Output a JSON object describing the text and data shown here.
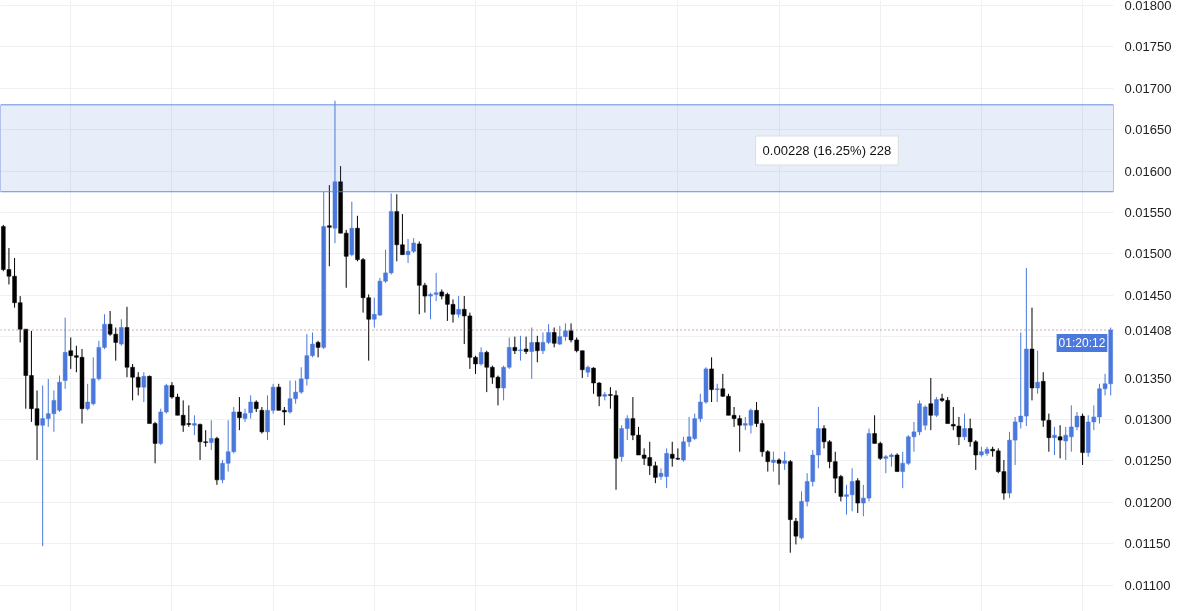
{
  "chart_data": {
    "type": "candlestick",
    "categories": [
      null,
      null,
      null,
      null,
      null,
      null,
      null,
      null,
      null,
      null,
      null,
      null,
      null,
      null,
      null,
      null,
      null,
      null,
      null,
      null,
      null,
      null,
      null,
      null,
      null,
      null,
      null,
      null,
      null,
      null,
      null,
      null,
      null,
      null,
      null,
      null,
      null,
      null,
      null,
      null,
      null,
      null,
      null,
      null,
      null,
      null,
      null,
      null,
      null,
      null,
      null,
      null,
      null,
      null,
      null,
      null,
      null,
      null,
      null,
      null,
      null,
      null,
      null,
      null,
      null,
      null,
      null,
      null,
      null,
      null,
      null,
      null,
      null,
      null,
      null,
      null,
      null,
      null,
      null,
      null,
      null,
      null,
      null,
      null,
      null,
      null,
      null,
      null,
      null,
      null,
      null,
      null,
      null,
      null,
      null,
      null,
      null,
      null,
      null,
      null,
      null,
      null,
      null,
      null,
      null,
      null,
      null,
      null,
      null,
      null,
      null,
      null,
      null,
      null,
      null,
      null,
      null,
      null,
      null,
      null,
      null,
      null,
      null,
      null,
      null,
      null,
      null,
      null,
      null,
      null,
      null,
      null,
      null,
      null,
      null,
      null,
      null,
      null,
      null,
      null,
      null,
      null,
      null,
      null,
      null,
      null,
      null,
      null,
      null,
      null,
      null,
      null,
      null,
      null,
      null,
      null,
      null,
      null,
      null,
      null,
      null,
      null,
      null,
      null,
      null,
      null,
      null,
      null,
      null,
      null,
      null,
      null,
      null,
      null,
      null,
      null,
      null,
      null,
      null,
      null,
      null,
      null,
      null,
      null,
      null,
      null,
      null,
      null,
      null,
      null,
      null,
      null,
      null,
      null,
      null,
      null,
      null,
      null
    ],
    "ohlc": [
      [
        0.01533,
        0.01535,
        0.01479,
        0.01481
      ],
      [
        0.01481,
        0.01507,
        0.01463,
        0.01473
      ],
      [
        0.01473,
        0.01495,
        0.01435,
        0.01441
      ],
      [
        0.01441,
        0.01449,
        0.01393,
        0.01409
      ],
      [
        0.01409,
        0.01409,
        0.01313,
        0.01353
      ],
      [
        0.01353,
        0.01407,
        0.01297,
        0.01313
      ],
      [
        0.01313,
        0.01335,
        0.01251,
        0.01293
      ],
      [
        0.01293,
        0.01341,
        0.01147,
        0.01301
      ],
      [
        0.01301,
        0.01349,
        0.01291,
        0.01307
      ],
      [
        0.01307,
        0.01335,
        0.01285,
        0.01323
      ],
      [
        0.01311,
        0.01353,
        0.01309,
        0.01345
      ],
      [
        0.01347,
        0.01423,
        0.01337,
        0.01381
      ],
      [
        0.01383,
        0.01399,
        0.01361,
        0.01377
      ],
      [
        0.01377,
        0.01389,
        0.01357,
        0.01375
      ],
      [
        0.01375,
        0.01385,
        0.01295,
        0.01313
      ],
      [
        0.01313,
        0.01343,
        0.01311,
        0.01321
      ],
      [
        0.01319,
        0.01375,
        0.01317,
        0.01349
      ],
      [
        0.01349,
        0.01395,
        0.01347,
        0.01387
      ],
      [
        0.01387,
        0.01427,
        0.01385,
        0.01415
      ],
      [
        0.01415,
        0.01431,
        0.01401,
        0.01403
      ],
      [
        0.01403,
        0.01411,
        0.01371,
        0.01393
      ],
      [
        0.01391,
        0.01421,
        0.01389,
        0.01411
      ],
      [
        0.01411,
        0.01436,
        0.01351,
        0.01363
      ],
      [
        0.01363,
        0.01367,
        0.01323,
        0.01351
      ],
      [
        0.01351,
        0.01357,
        0.01329,
        0.01339
      ],
      [
        0.01339,
        0.01357,
        0.01321,
        0.01352
      ],
      [
        0.01352,
        0.01353,
        0.01295,
        0.01295
      ],
      [
        0.01295,
        0.01297,
        0.01247,
        0.01271
      ],
      [
        0.01271,
        0.01313,
        0.01269,
        0.01309
      ],
      [
        0.01309,
        0.01343,
        0.01307,
        0.01341
      ],
      [
        0.01341,
        0.01345,
        0.01325,
        0.01327
      ],
      [
        0.01327,
        0.01331,
        0.01305,
        0.01305
      ],
      [
        0.01305,
        0.01323,
        0.01285,
        0.01293
      ],
      [
        0.01295,
        0.01317,
        0.01291,
        0.01294
      ],
      [
        0.01293,
        0.01305,
        0.01281,
        0.01295
      ],
      [
        0.01294,
        0.01295,
        0.01251,
        0.01273
      ],
      [
        0.01273,
        0.01287,
        0.01267,
        0.01272
      ],
      [
        0.01272,
        0.01299,
        0.01263,
        0.01277
      ],
      [
        0.01277,
        0.01279,
        0.01221,
        0.01227
      ],
      [
        0.01227,
        0.01251,
        0.01223,
        0.01247
      ],
      [
        0.01247,
        0.01299,
        0.01237,
        0.01261
      ],
      [
        0.01261,
        0.01315,
        0.01259,
        0.01309
      ],
      [
        0.01309,
        0.01327,
        0.01287,
        0.01302
      ],
      [
        0.01301,
        0.01313,
        0.01297,
        0.01307
      ],
      [
        0.01308,
        0.01329,
        0.01301,
        0.01321
      ],
      [
        0.01321,
        0.01323,
        0.01309,
        0.01313
      ],
      [
        0.01311,
        0.01315,
        0.01283,
        0.01285
      ],
      [
        0.01285,
        0.01329,
        0.01275,
        0.01311
      ],
      [
        0.01311,
        0.01343,
        0.01307,
        0.01339
      ],
      [
        0.01339,
        0.01343,
        0.01311,
        0.01311
      ],
      [
        0.01311,
        0.01315,
        0.01293,
        0.01309
      ],
      [
        0.01309,
        0.01347,
        0.01307,
        0.01325
      ],
      [
        0.01325,
        0.01347,
        0.01319,
        0.01333
      ],
      [
        0.01333,
        0.01363,
        0.01331,
        0.01349
      ],
      [
        0.01349,
        0.01403,
        0.01341,
        0.01377
      ],
      [
        0.01377,
        0.01405,
        0.01375,
        0.01391
      ],
      [
        0.01393,
        0.01395,
        0.01375,
        0.01387
      ],
      [
        0.01387,
        0.01575,
        0.01385,
        0.01533
      ],
      [
        0.01534,
        0.01583,
        0.01485,
        0.01532
      ],
      [
        0.01531,
        0.01685,
        0.01513,
        0.01587
      ],
      [
        0.01587,
        0.01606,
        0.01525,
        0.01525
      ],
      [
        0.01525,
        0.01529,
        0.01459,
        0.01497
      ],
      [
        0.01499,
        0.01563,
        0.01497,
        0.01531
      ],
      [
        0.01531,
        0.01546,
        0.01491,
        0.01493
      ],
      [
        0.01493,
        0.01495,
        0.01429,
        0.01447
      ],
      [
        0.01447,
        0.01451,
        0.01371,
        0.01421
      ],
      [
        0.01421,
        0.01447,
        0.01411,
        0.01427
      ],
      [
        0.01426,
        0.01471,
        0.01425,
        0.01467
      ],
      [
        0.01467,
        0.01505,
        0.01465,
        0.01477
      ],
      [
        0.01477,
        0.01573,
        0.01475,
        0.01551
      ],
      [
        0.01551,
        0.01572,
        0.01491,
        0.01511
      ],
      [
        0.01511,
        0.01548,
        0.01499,
        0.01499
      ],
      [
        0.01499,
        0.01518,
        0.01489,
        0.01503
      ],
      [
        0.01503,
        0.01519,
        0.01501,
        0.01513
      ],
      [
        0.01512,
        0.01515,
        0.01427,
        0.01462
      ],
      [
        0.01462,
        0.01465,
        0.01429,
        0.01449
      ],
      [
        0.01449,
        0.01453,
        0.01421,
        0.01451
      ],
      [
        0.01451,
        0.01477,
        0.01443,
        0.01453
      ],
      [
        0.01454,
        0.01457,
        0.01445,
        0.01449
      ],
      [
        0.01451,
        0.01453,
        0.01419,
        0.01439
      ],
      [
        0.01439,
        0.01445,
        0.01417,
        0.01427
      ],
      [
        0.01427,
        0.01449,
        0.01423,
        0.01433
      ],
      [
        0.01433,
        0.01449,
        0.01391,
        0.01425
      ],
      [
        0.01425,
        0.01429,
        0.01361,
        0.01375
      ],
      [
        0.01375,
        0.01377,
        0.01355,
        0.01367
      ],
      [
        0.01367,
        0.01387,
        0.01365,
        0.01381
      ],
      [
        0.01381,
        0.01383,
        0.01333,
        0.01363
      ],
      [
        0.01363,
        0.01365,
        0.01343,
        0.01351
      ],
      [
        0.01351,
        0.01353,
        0.01317,
        0.01338
      ],
      [
        0.01338,
        0.01365,
        0.01323,
        0.01363
      ],
      [
        0.01363,
        0.01399,
        0.01361,
        0.01387
      ],
      [
        0.01387,
        0.014,
        0.01379,
        0.01383
      ],
      [
        0.01383,
        0.01401,
        0.01371,
        0.01384
      ],
      [
        0.01385,
        0.014,
        0.01379,
        0.01382
      ],
      [
        0.01382,
        0.01411,
        0.01349,
        0.01393
      ],
      [
        0.01393,
        0.01401,
        0.01369,
        0.01383
      ],
      [
        0.01383,
        0.01405,
        0.01379,
        0.01393
      ],
      [
        0.01393,
        0.01415,
        0.01391,
        0.01405
      ],
      [
        0.01405,
        0.01411,
        0.01387,
        0.01392
      ],
      [
        0.01391,
        0.01413,
        0.0139,
        0.014
      ],
      [
        0.014,
        0.01416,
        0.01395,
        0.01407
      ],
      [
        0.01407,
        0.01416,
        0.01393,
        0.01396
      ],
      [
        0.01396,
        0.01399,
        0.01381,
        0.01383
      ],
      [
        0.01383,
        0.01383,
        0.0135,
        0.0136
      ],
      [
        0.01357,
        0.01365,
        0.01351,
        0.01363
      ],
      [
        0.01362,
        0.01363,
        0.01331,
        0.01344
      ],
      [
        0.01344,
        0.01345,
        0.01316,
        0.01328
      ],
      [
        0.01328,
        0.01333,
        0.01323,
        0.0133
      ],
      [
        0.0133,
        0.01339,
        0.01313,
        0.01329
      ],
      [
        0.01329,
        0.01335,
        0.01215,
        0.01253
      ],
      [
        0.01255,
        0.01293,
        0.01249,
        0.01289
      ],
      [
        0.01289,
        0.01305,
        0.01275,
        0.01301
      ],
      [
        0.01301,
        0.01327,
        0.01275,
        0.01281
      ],
      [
        0.01281,
        0.01291,
        0.01257,
        0.01257
      ],
      [
        0.01257,
        0.01265,
        0.01245,
        0.01253
      ],
      [
        0.01254,
        0.01273,
        0.01233,
        0.01244
      ],
      [
        0.01244,
        0.01249,
        0.01223,
        0.0123
      ],
      [
        0.01231,
        0.01241,
        0.01227,
        0.01235
      ],
      [
        0.01231,
        0.01265,
        0.01217,
        0.01259
      ],
      [
        0.01258,
        0.01273,
        0.01243,
        0.01253
      ],
      [
        0.01253,
        0.01265,
        0.01251,
        0.01252
      ],
      [
        0.01251,
        0.01279,
        0.01249,
        0.01273
      ],
      [
        0.01273,
        0.01303,
        0.01267,
        0.01279
      ],
      [
        0.01277,
        0.01307,
        0.01275,
        0.01301
      ],
      [
        0.01301,
        0.01331,
        0.01297,
        0.01321
      ],
      [
        0.01321,
        0.01363,
        0.01319,
        0.01361
      ],
      [
        0.01361,
        0.01375,
        0.01321,
        0.01336
      ],
      [
        0.01336,
        0.01343,
        0.01321,
        0.01337
      ],
      [
        0.01337,
        0.01355,
        0.01327,
        0.01328
      ],
      [
        0.01328,
        0.01331,
        0.01305,
        0.01305
      ],
      [
        0.01305,
        0.01315,
        0.01291,
        0.01301
      ],
      [
        0.01301,
        0.01305,
        0.01261,
        0.01293
      ],
      [
        0.01293,
        0.01303,
        0.01287,
        0.01295
      ],
      [
        0.01293,
        0.01313,
        0.01283,
        0.01311
      ],
      [
        0.01311,
        0.01321,
        0.01291,
        0.01295
      ],
      [
        0.01295,
        0.01299,
        0.01255,
        0.01261
      ],
      [
        0.01261,
        0.01263,
        0.01237,
        0.01249
      ],
      [
        0.01248,
        0.01261,
        0.01237,
        0.01251
      ],
      [
        0.01251,
        0.01253,
        0.01221,
        0.01247
      ],
      [
        0.01247,
        0.01261,
        0.01239,
        0.0125
      ],
      [
        0.01249,
        0.01251,
        0.01139,
        0.01179
      ],
      [
        0.01177,
        0.01181,
        0.01149,
        0.01159
      ],
      [
        0.01157,
        0.01213,
        0.01155,
        0.01201
      ],
      [
        0.01201,
        0.01235,
        0.01195,
        0.01225
      ],
      [
        0.01225,
        0.01263,
        0.01219,
        0.01257
      ],
      [
        0.01257,
        0.01315,
        0.01241,
        0.01289
      ],
      [
        0.01289,
        0.01293,
        0.01265,
        0.01273
      ],
      [
        0.01273,
        0.01275,
        0.01241,
        0.01249
      ],
      [
        0.01249,
        0.01261,
        0.01211,
        0.01229
      ],
      [
        0.01231,
        0.01233,
        0.01201,
        0.01207
      ],
      [
        0.01207,
        0.01221,
        0.01185,
        0.01209
      ],
      [
        0.01209,
        0.01241,
        0.01189,
        0.01225
      ],
      [
        0.01226,
        0.01229,
        0.01187,
        0.01199
      ],
      [
        0.01199,
        0.01221,
        0.01183,
        0.01205
      ],
      [
        0.01205,
        0.01289,
        0.01201,
        0.01283
      ],
      [
        0.01283,
        0.01305,
        0.01271,
        0.01271
      ],
      [
        0.01271,
        0.01273,
        0.01251,
        0.01253
      ],
      [
        0.01253,
        0.01257,
        0.01235,
        0.01255
      ],
      [
        0.01255,
        0.01259,
        0.01243,
        0.01257
      ],
      [
        0.01257,
        0.01259,
        0.01237,
        0.01237
      ],
      [
        0.01237,
        0.01261,
        0.01217,
        0.01247
      ],
      [
        0.01247,
        0.01281,
        0.01245,
        0.01279
      ],
      [
        0.01279,
        0.01297,
        0.01261,
        0.01285
      ],
      [
        0.01285,
        0.01323,
        0.01281,
        0.01319
      ],
      [
        0.01293,
        0.01317,
        0.01287,
        0.01315
      ],
      [
        0.01319,
        0.0135,
        0.01287,
        0.01305
      ],
      [
        0.01305,
        0.01327,
        0.01303,
        0.01324
      ],
      [
        0.01325,
        0.01331,
        0.01321,
        0.01323
      ],
      [
        0.01323,
        0.01327,
        0.01295,
        0.01295
      ],
      [
        0.01294,
        0.01315,
        0.01287,
        0.01292
      ],
      [
        0.01292,
        0.01303,
        0.01269,
        0.01279
      ],
      [
        0.01279,
        0.01307,
        0.01275,
        0.01289
      ],
      [
        0.01289,
        0.01301,
        0.01267,
        0.01273
      ],
      [
        0.01273,
        0.01275,
        0.01239,
        0.01257
      ],
      [
        0.01257,
        0.01267,
        0.01255,
        0.01261
      ],
      [
        0.01259,
        0.01267,
        0.01256,
        0.01264
      ],
      [
        0.01264,
        0.01267,
        0.01255,
        0.01262
      ],
      [
        0.01262,
        0.01265,
        0.01235,
        0.01237
      ],
      [
        0.01237,
        0.01251,
        0.01203,
        0.01211
      ],
      [
        0.01211,
        0.01285,
        0.01205,
        0.01275
      ],
      [
        0.01275,
        0.01303,
        0.01245,
        0.01297
      ],
      [
        0.01297,
        0.01405,
        0.01289,
        0.01304
      ],
      [
        0.01304,
        0.01483,
        0.01292,
        0.01385
      ],
      [
        0.01385,
        0.01435,
        0.01323,
        0.01338
      ],
      [
        0.01338,
        0.01383,
        0.01331,
        0.01345
      ],
      [
        0.01346,
        0.01357,
        0.01291,
        0.01299
      ],
      [
        0.01299,
        0.01307,
        0.01261,
        0.01278
      ],
      [
        0.01278,
        0.01291,
        0.01257,
        0.01281
      ],
      [
        0.01279,
        0.01293,
        0.01253,
        0.01275
      ],
      [
        0.01274,
        0.01291,
        0.01251,
        0.01281
      ],
      [
        0.01279,
        0.01317,
        0.01261,
        0.01291
      ],
      [
        0.01291,
        0.01309,
        0.01287,
        0.01304
      ],
      [
        0.01304,
        0.01307,
        0.01245,
        0.0126
      ],
      [
        0.0126,
        0.01305,
        0.01255,
        0.01297
      ],
      [
        0.01297,
        0.01317,
        0.01287,
        0.01303
      ],
      [
        0.01303,
        0.01343,
        0.01295,
        0.01337
      ],
      [
        0.01337,
        0.01355,
        0.01329,
        0.01343
      ],
      [
        0.01343,
        0.01411,
        0.01329,
        0.01408
      ]
    ],
    "ylim": [
      0.01068,
      0.01806
    ],
    "yticks": [
      {
        "value": 0.011,
        "label": "0.01100"
      },
      {
        "value": 0.0115,
        "label": "0.01150"
      },
      {
        "value": 0.012,
        "label": "0.01200"
      },
      {
        "value": 0.0125,
        "label": "0.01250"
      },
      {
        "value": 0.013,
        "label": "0.01300"
      },
      {
        "value": 0.0135,
        "label": "0.01350"
      },
      {
        "value": 0.014,
        "label": null
      },
      {
        "value": 0.0145,
        "label": "0.01450"
      },
      {
        "value": 0.015,
        "label": "0.01500"
      },
      {
        "value": 0.0155,
        "label": "0.01550"
      },
      {
        "value": 0.016,
        "label": "0.01600"
      },
      {
        "value": 0.0165,
        "label": "0.01650"
      },
      {
        "value": 0.017,
        "label": "0.01700"
      },
      {
        "value": 0.0175,
        "label": "0.01750"
      },
      {
        "value": 0.018,
        "label": "0.01800"
      }
    ],
    "grid": true,
    "ref_lines": [
      {
        "axis": "y",
        "value": 0.01408,
        "label": "0.01408",
        "color": "#9c5b5b",
        "line_style": "dotted"
      }
    ],
    "bands": [
      {
        "axis": "y",
        "from": 0.01575,
        "to": 0.0168,
        "label": null,
        "color": "#5a82dc"
      }
    ],
    "annotations": [
      "0.00228 (16.25%) 228",
      "01:20:12"
    ]
  }
}
